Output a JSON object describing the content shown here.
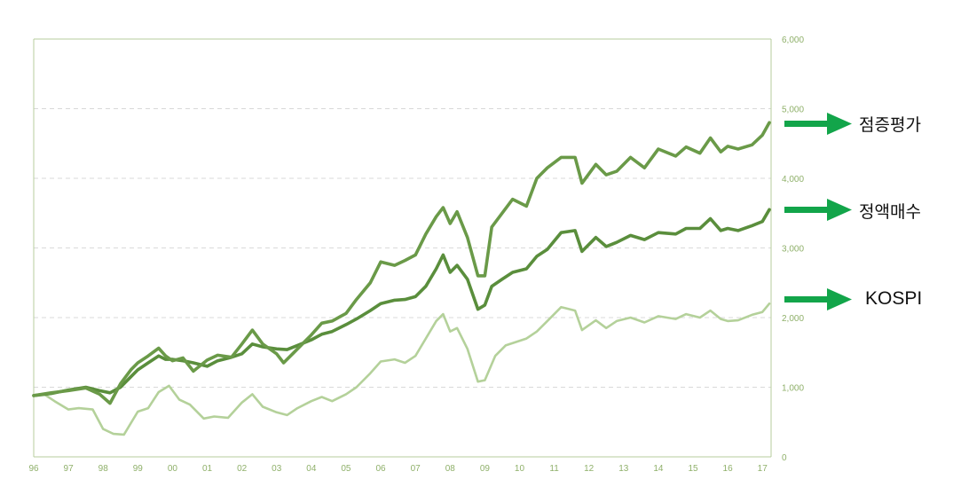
{
  "chart_data": {
    "type": "line",
    "title": "",
    "xlabel": "",
    "ylabel": "",
    "x_ticks": [
      "96",
      "97",
      "98",
      "99",
      "00",
      "01",
      "02",
      "03",
      "04",
      "05",
      "06",
      "07",
      "08",
      "09",
      "10",
      "11",
      "12",
      "13",
      "14",
      "15",
      "16",
      "17"
    ],
    "y_ticks": [
      "0",
      "1,000",
      "2,000",
      "3,000",
      "4,000",
      "5,000",
      "6,000"
    ],
    "ylim": [
      0,
      6000
    ],
    "xlim": [
      1996.0,
      2017.25
    ],
    "grid": "horizontal dashed",
    "legend_placement": "right, arrows pointing to line ends",
    "colors": {
      "arrow": "#12a54a",
      "axis": "#b7cc9c",
      "grid": "#d9d9d9",
      "tick_text": "#8fb06a"
    },
    "series": [
      {
        "name": "점증평가",
        "color": "#6a9a48",
        "width": 3.6,
        "points": [
          [
            1996.0,
            880
          ],
          [
            1996.5,
            920
          ],
          [
            1997.0,
            950
          ],
          [
            1997.5,
            990
          ],
          [
            1997.9,
            900
          ],
          [
            1998.2,
            770
          ],
          [
            1998.5,
            1050
          ],
          [
            1998.8,
            1250
          ],
          [
            1999.0,
            1350
          ],
          [
            1999.3,
            1450
          ],
          [
            1999.6,
            1560
          ],
          [
            1999.8,
            1450
          ],
          [
            2000.0,
            1380
          ],
          [
            2000.3,
            1420
          ],
          [
            2000.6,
            1230
          ],
          [
            2001.0,
            1390
          ],
          [
            2001.3,
            1460
          ],
          [
            2001.7,
            1430
          ],
          [
            2002.0,
            1620
          ],
          [
            2002.3,
            1820
          ],
          [
            2002.6,
            1620
          ],
          [
            2003.0,
            1480
          ],
          [
            2003.2,
            1350
          ],
          [
            2003.5,
            1500
          ],
          [
            2004.0,
            1750
          ],
          [
            2004.3,
            1920
          ],
          [
            2004.6,
            1950
          ],
          [
            2005.0,
            2060
          ],
          [
            2005.3,
            2260
          ],
          [
            2005.7,
            2500
          ],
          [
            2006.0,
            2800
          ],
          [
            2006.4,
            2750
          ],
          [
            2006.7,
            2820
          ],
          [
            2007.0,
            2900
          ],
          [
            2007.3,
            3200
          ],
          [
            2007.6,
            3450
          ],
          [
            2007.8,
            3580
          ],
          [
            2008.0,
            3350
          ],
          [
            2008.2,
            3520
          ],
          [
            2008.5,
            3150
          ],
          [
            2008.8,
            2600
          ],
          [
            2009.0,
            2600
          ],
          [
            2009.2,
            3300
          ],
          [
            2009.5,
            3500
          ],
          [
            2009.8,
            3700
          ],
          [
            2010.2,
            3600
          ],
          [
            2010.5,
            4000
          ],
          [
            2010.8,
            4150
          ],
          [
            2011.2,
            4300
          ],
          [
            2011.6,
            4300
          ],
          [
            2011.8,
            3930
          ],
          [
            2012.2,
            4200
          ],
          [
            2012.5,
            4050
          ],
          [
            2012.8,
            4100
          ],
          [
            2013.2,
            4300
          ],
          [
            2013.6,
            4150
          ],
          [
            2014.0,
            4420
          ],
          [
            2014.5,
            4320
          ],
          [
            2014.8,
            4450
          ],
          [
            2015.2,
            4360
          ],
          [
            2015.5,
            4580
          ],
          [
            2015.8,
            4380
          ],
          [
            2016.0,
            4460
          ],
          [
            2016.3,
            4420
          ],
          [
            2016.7,
            4480
          ],
          [
            2017.0,
            4620
          ],
          [
            2017.2,
            4800
          ]
        ]
      },
      {
        "name": "정액매수",
        "color": "#5a8e3c",
        "width": 3.6,
        "points": [
          [
            1996.0,
            880
          ],
          [
            1996.5,
            910
          ],
          [
            1997.0,
            960
          ],
          [
            1997.5,
            1000
          ],
          [
            1997.9,
            950
          ],
          [
            1998.2,
            920
          ],
          [
            1998.5,
            1000
          ],
          [
            1998.8,
            1150
          ],
          [
            1999.0,
            1250
          ],
          [
            1999.3,
            1350
          ],
          [
            1999.6,
            1450
          ],
          [
            1999.8,
            1400
          ],
          [
            2000.0,
            1400
          ],
          [
            2000.3,
            1380
          ],
          [
            2000.6,
            1350
          ],
          [
            2001.0,
            1300
          ],
          [
            2001.3,
            1380
          ],
          [
            2001.7,
            1430
          ],
          [
            2002.0,
            1480
          ],
          [
            2002.3,
            1620
          ],
          [
            2002.6,
            1580
          ],
          [
            2003.0,
            1550
          ],
          [
            2003.3,
            1540
          ],
          [
            2003.6,
            1600
          ],
          [
            2004.0,
            1680
          ],
          [
            2004.3,
            1760
          ],
          [
            2004.6,
            1800
          ],
          [
            2005.0,
            1900
          ],
          [
            2005.3,
            1980
          ],
          [
            2005.7,
            2100
          ],
          [
            2006.0,
            2200
          ],
          [
            2006.4,
            2250
          ],
          [
            2006.7,
            2260
          ],
          [
            2007.0,
            2300
          ],
          [
            2007.3,
            2450
          ],
          [
            2007.6,
            2700
          ],
          [
            2007.8,
            2900
          ],
          [
            2008.0,
            2650
          ],
          [
            2008.2,
            2750
          ],
          [
            2008.5,
            2550
          ],
          [
            2008.8,
            2120
          ],
          [
            2009.0,
            2180
          ],
          [
            2009.2,
            2450
          ],
          [
            2009.5,
            2550
          ],
          [
            2009.8,
            2650
          ],
          [
            2010.2,
            2700
          ],
          [
            2010.5,
            2880
          ],
          [
            2010.8,
            2980
          ],
          [
            2011.2,
            3220
          ],
          [
            2011.6,
            3250
          ],
          [
            2011.8,
            2950
          ],
          [
            2012.2,
            3150
          ],
          [
            2012.5,
            3020
          ],
          [
            2012.8,
            3080
          ],
          [
            2013.2,
            3180
          ],
          [
            2013.6,
            3120
          ],
          [
            2014.0,
            3220
          ],
          [
            2014.5,
            3200
          ],
          [
            2014.8,
            3280
          ],
          [
            2015.2,
            3280
          ],
          [
            2015.5,
            3420
          ],
          [
            2015.8,
            3250
          ],
          [
            2016.0,
            3280
          ],
          [
            2016.3,
            3250
          ],
          [
            2016.7,
            3320
          ],
          [
            2017.0,
            3380
          ],
          [
            2017.2,
            3550
          ]
        ]
      },
      {
        "name": "KOSPI",
        "color": "#b4d19a",
        "width": 2.6,
        "points": [
          [
            1996.0,
            880
          ],
          [
            1996.3,
            900
          ],
          [
            1996.6,
            800
          ],
          [
            1997.0,
            680
          ],
          [
            1997.3,
            700
          ],
          [
            1997.7,
            680
          ],
          [
            1998.0,
            400
          ],
          [
            1998.3,
            330
          ],
          [
            1998.6,
            320
          ],
          [
            1999.0,
            650
          ],
          [
            1999.3,
            700
          ],
          [
            1999.6,
            930
          ],
          [
            1999.9,
            1020
          ],
          [
            2000.2,
            820
          ],
          [
            2000.5,
            750
          ],
          [
            2000.9,
            550
          ],
          [
            2001.2,
            580
          ],
          [
            2001.6,
            560
          ],
          [
            2002.0,
            780
          ],
          [
            2002.3,
            900
          ],
          [
            2002.6,
            720
          ],
          [
            2003.0,
            640
          ],
          [
            2003.3,
            600
          ],
          [
            2003.6,
            700
          ],
          [
            2004.0,
            800
          ],
          [
            2004.3,
            860
          ],
          [
            2004.6,
            800
          ],
          [
            2005.0,
            900
          ],
          [
            2005.3,
            1000
          ],
          [
            2005.7,
            1200
          ],
          [
            2006.0,
            1370
          ],
          [
            2006.4,
            1400
          ],
          [
            2006.7,
            1350
          ],
          [
            2007.0,
            1450
          ],
          [
            2007.3,
            1700
          ],
          [
            2007.6,
            1950
          ],
          [
            2007.8,
            2050
          ],
          [
            2008.0,
            1800
          ],
          [
            2008.2,
            1850
          ],
          [
            2008.5,
            1550
          ],
          [
            2008.8,
            1080
          ],
          [
            2009.0,
            1100
          ],
          [
            2009.3,
            1450
          ],
          [
            2009.6,
            1600
          ],
          [
            2009.9,
            1650
          ],
          [
            2010.2,
            1700
          ],
          [
            2010.5,
            1800
          ],
          [
            2010.8,
            1950
          ],
          [
            2011.2,
            2150
          ],
          [
            2011.6,
            2100
          ],
          [
            2011.8,
            1820
          ],
          [
            2012.2,
            1960
          ],
          [
            2012.5,
            1850
          ],
          [
            2012.8,
            1950
          ],
          [
            2013.2,
            2000
          ],
          [
            2013.6,
            1930
          ],
          [
            2014.0,
            2020
          ],
          [
            2014.5,
            1980
          ],
          [
            2014.8,
            2050
          ],
          [
            2015.2,
            2000
          ],
          [
            2015.5,
            2100
          ],
          [
            2015.8,
            1980
          ],
          [
            2016.0,
            1950
          ],
          [
            2016.3,
            1960
          ],
          [
            2016.7,
            2040
          ],
          [
            2017.0,
            2080
          ],
          [
            2017.2,
            2200
          ]
        ]
      }
    ]
  }
}
